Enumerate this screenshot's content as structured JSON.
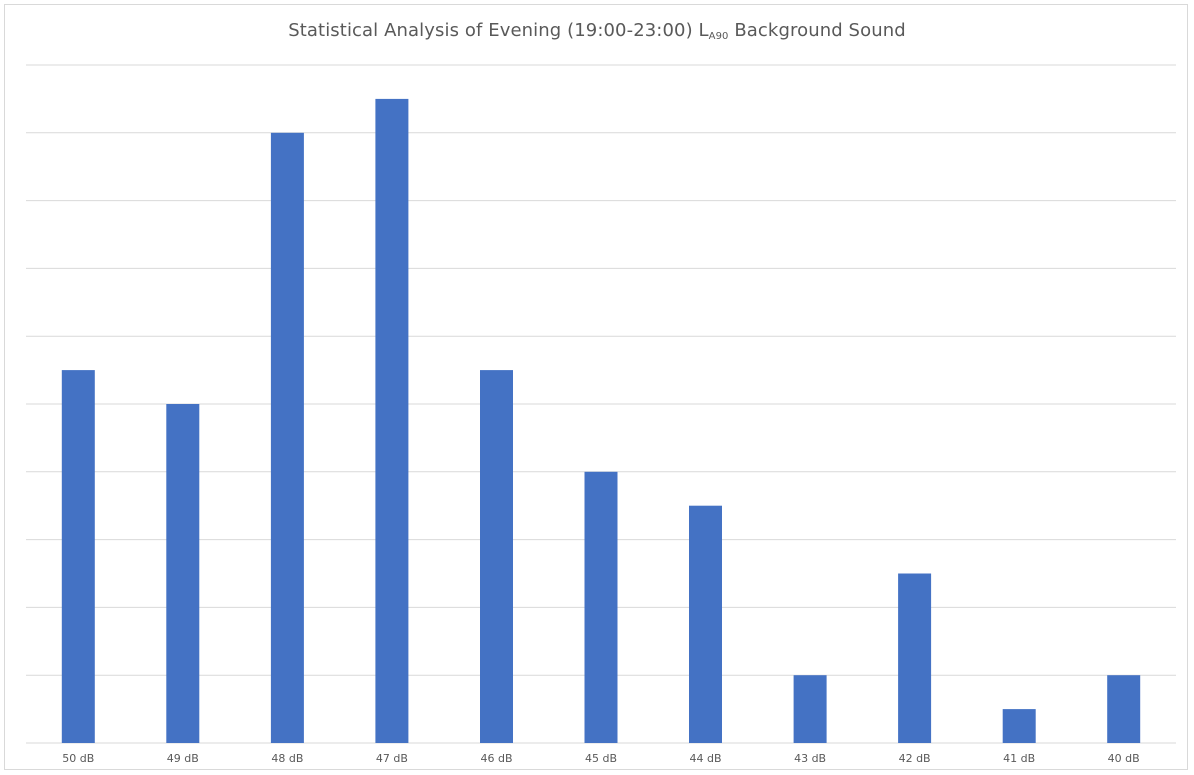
{
  "chart_data": {
    "type": "bar",
    "title_main": "Statistical Analysis of Evening (19:00-23:00) L",
    "title_sub": "A90",
    "title_tail": " Background Sound",
    "xlabel": "",
    "ylabel": "",
    "categories": [
      "50 dB",
      "49 dB",
      "48 dB",
      "47 dB",
      "46 dB",
      "45 dB",
      "44 dB",
      "43 dB",
      "42 dB",
      "41 dB",
      "40 dB"
    ],
    "values": [
      11,
      10,
      18,
      19,
      11,
      8,
      7,
      2,
      5,
      1,
      2
    ],
    "ylim": [
      0,
      20
    ],
    "y_gridline_step": 2,
    "y_tick_labels_shown": false,
    "grid": true,
    "legend": "none",
    "bar_color": "#4472c4",
    "grid_color": "#d9d9d9",
    "text_color": "#595959"
  }
}
